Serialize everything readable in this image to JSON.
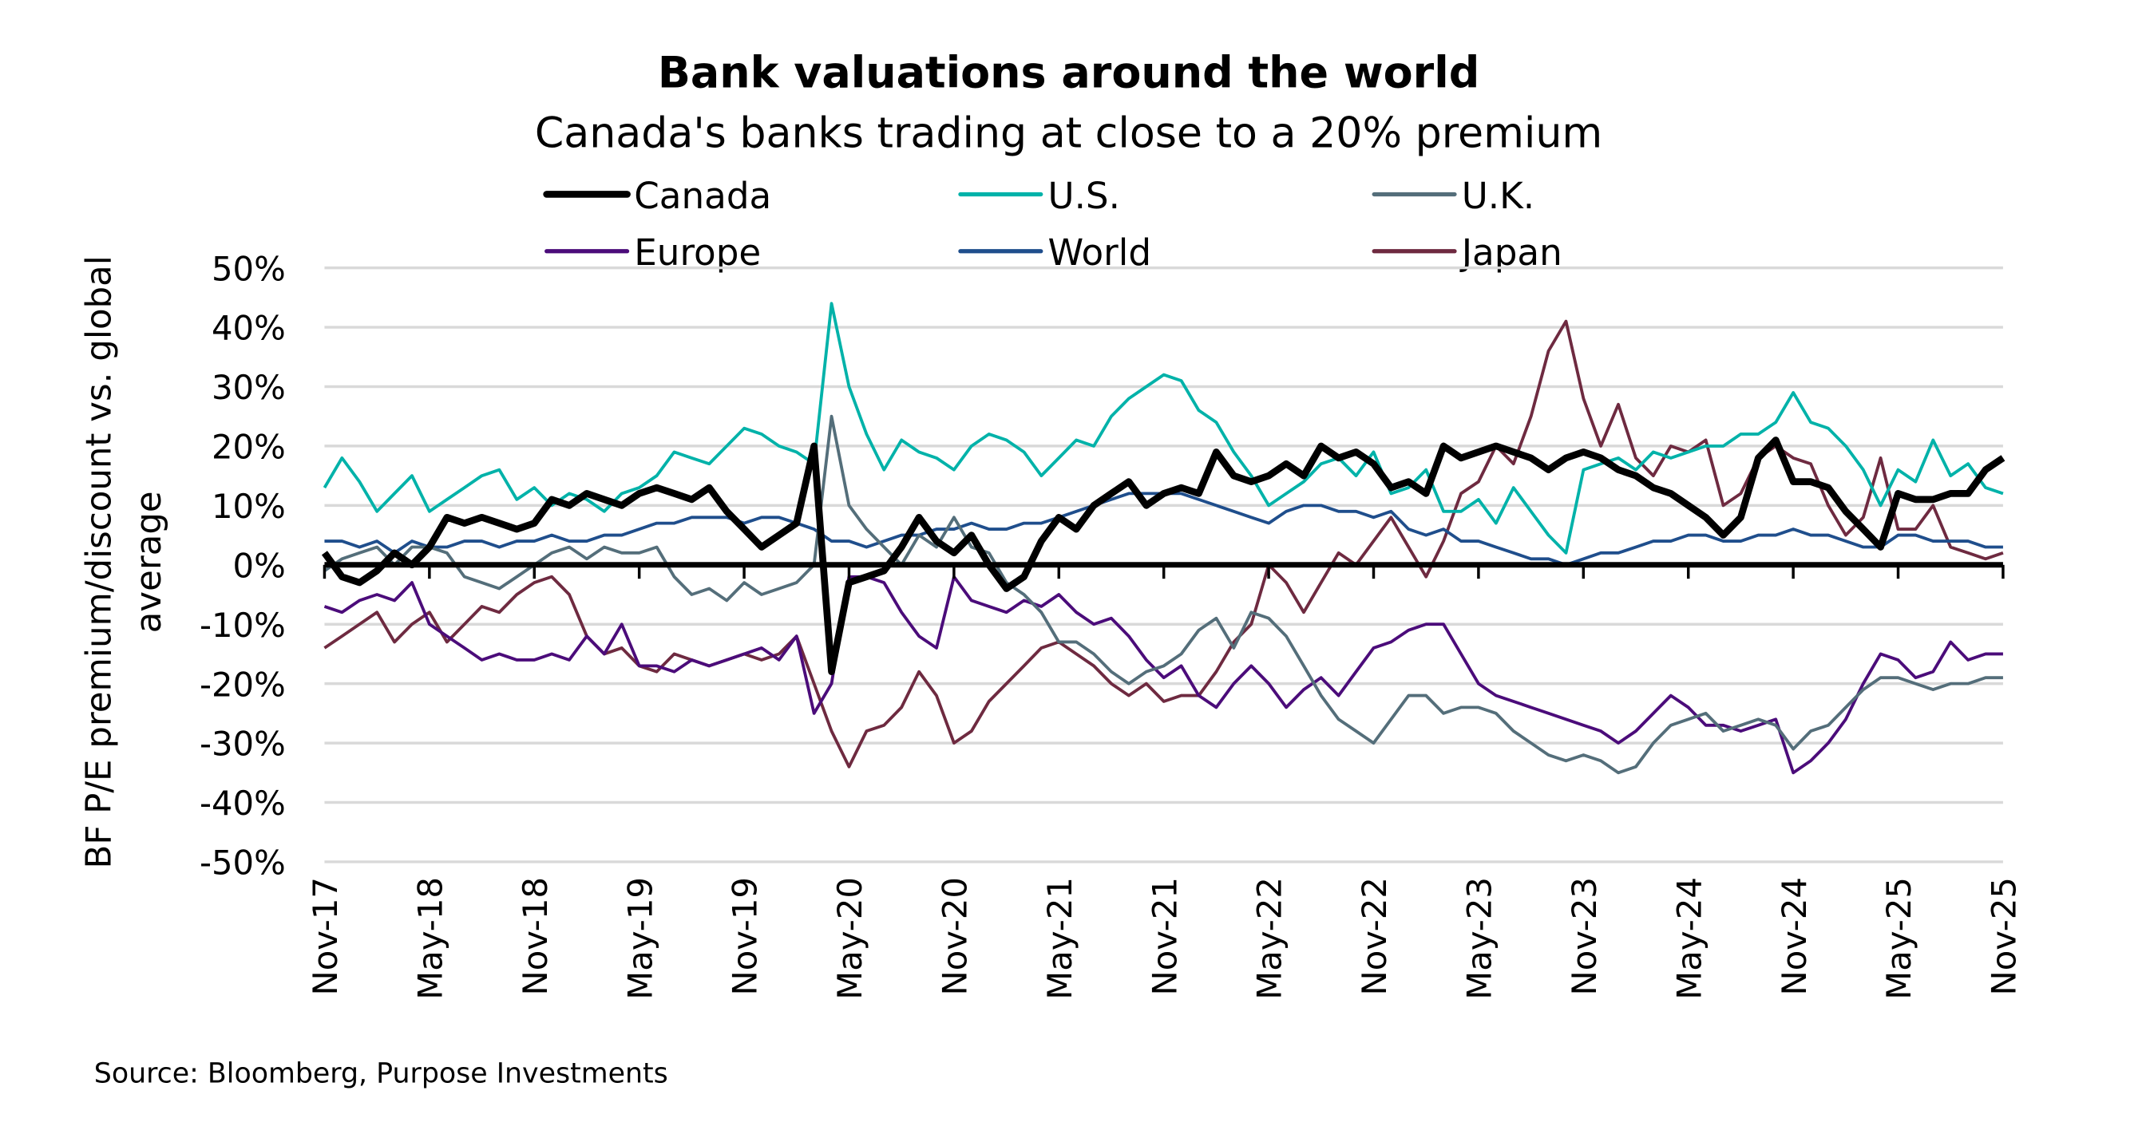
{
  "chart_data": {
    "type": "line",
    "title": "Bank valuations around the world",
    "subtitle": "Canada's banks trading at close to a 20% premium",
    "ylabel_lines": [
      "BF P/E premium/discount vs. global",
      "average"
    ],
    "xlabel": "",
    "source": "Source: Bloomberg, Purpose Investments",
    "ylim": [
      -50,
      50
    ],
    "y_ticks": [
      "50%",
      "40%",
      "30%",
      "20%",
      "10%",
      "0%",
      "-10%",
      "-20%",
      "-30%",
      "-40%",
      "-50%"
    ],
    "y_tick_values": [
      50,
      40,
      30,
      20,
      10,
      0,
      -10,
      -20,
      -30,
      -40,
      -50
    ],
    "x_range": [
      "Nov-17",
      "Nov-25"
    ],
    "x_frequency": "monthly",
    "x_ticks": [
      "Nov-17",
      "May-18",
      "Nov-18",
      "May-19",
      "Nov-19",
      "May-20",
      "Nov-20",
      "May-21",
      "Nov-21",
      "May-22",
      "Nov-22",
      "May-23",
      "Nov-23",
      "May-24",
      "Nov-24",
      "May-25",
      "Nov-25"
    ],
    "grid": true,
    "legend_position": "top",
    "series": [
      {
        "name": "Canada",
        "color": "#000000",
        "values": [
          2,
          -2,
          -3,
          -1,
          2,
          0,
          3,
          8,
          7,
          8,
          7,
          6,
          7,
          11,
          10,
          12,
          11,
          10,
          12,
          13,
          12,
          11,
          13,
          9,
          6,
          3,
          5,
          7,
          20,
          -18,
          -3,
          -2,
          -1,
          3,
          8,
          4,
          2,
          5,
          0,
          -4,
          -2,
          4,
          8,
          6,
          10,
          12,
          14,
          10,
          12,
          13,
          12,
          19,
          15,
          14,
          15,
          17,
          15,
          20,
          18,
          19,
          17,
          13,
          14,
          12,
          20,
          18,
          19,
          20,
          19,
          18,
          16,
          18,
          19,
          18,
          16,
          15,
          13,
          12,
          10,
          8,
          5,
          8,
          18,
          21,
          14,
          14,
          13,
          9,
          6,
          3,
          12,
          11,
          11,
          12,
          12,
          16,
          18
        ]
      },
      {
        "name": "U.S.",
        "color": "#00B2A9",
        "values": [
          13,
          18,
          14,
          9,
          12,
          15,
          9,
          11,
          13,
          15,
          16,
          11,
          13,
          10,
          12,
          11,
          9,
          12,
          13,
          15,
          19,
          18,
          17,
          20,
          23,
          22,
          20,
          19,
          17,
          44,
          30,
          22,
          16,
          21,
          19,
          18,
          16,
          20,
          22,
          21,
          19,
          15,
          18,
          21,
          20,
          25,
          28,
          30,
          32,
          31,
          26,
          24,
          19,
          15,
          10,
          12,
          14,
          17,
          18,
          15,
          19,
          12,
          13,
          16,
          9,
          9,
          11,
          7,
          13,
          9,
          5,
          2,
          16,
          17,
          18,
          16,
          19,
          18,
          19,
          20,
          20,
          22,
          22,
          24,
          29,
          24,
          23,
          20,
          16,
          10,
          16,
          14,
          21,
          15,
          17,
          13,
          12
        ]
      },
      {
        "name": "U.K.",
        "color": "#546E7A",
        "values": [
          -1,
          1,
          2,
          3,
          0,
          3,
          3,
          2,
          -2,
          -3,
          -4,
          -2,
          0,
          2,
          3,
          1,
          3,
          2,
          2,
          3,
          -2,
          -5,
          -4,
          -6,
          -3,
          -5,
          -4,
          -3,
          0,
          25,
          10,
          6,
          3,
          0,
          5,
          3,
          8,
          3,
          2,
          -3,
          -5,
          -8,
          -13,
          -13,
          -15,
          -18,
          -20,
          -18,
          -17,
          -15,
          -11,
          -9,
          -14,
          -8,
          -9,
          -12,
          -17,
          -22,
          -26,
          -28,
          -30,
          -26,
          -22,
          -22,
          -25,
          -24,
          -24,
          -25,
          -28,
          -30,
          -32,
          -33,
          -32,
          -33,
          -35,
          -34,
          -30,
          -27,
          -26,
          -25,
          -28,
          -27,
          -26,
          -27,
          -31,
          -28,
          -27,
          -24,
          -21,
          -19,
          -19,
          -20,
          -21,
          -20,
          -20,
          -19,
          -19
        ]
      },
      {
        "name": "Europe",
        "color": "#4B0C7A",
        "values": [
          -7,
          -8,
          -6,
          -5,
          -6,
          -3,
          -10,
          -12,
          -14,
          -16,
          -15,
          -16,
          -16,
          -15,
          -16,
          -12,
          -15,
          -10,
          -17,
          -17,
          -18,
          -16,
          -17,
          -16,
          -15,
          -14,
          -16,
          -12,
          -25,
          -20,
          -2,
          -2,
          -3,
          -8,
          -12,
          -14,
          -2,
          -6,
          -7,
          -8,
          -6,
          -7,
          -5,
          -8,
          -10,
          -9,
          -12,
          -16,
          -19,
          -17,
          -22,
          -24,
          -20,
          -17,
          -20,
          -24,
          -21,
          -19,
          -22,
          -18,
          -14,
          -13,
          -11,
          -10,
          -10,
          -15,
          -20,
          -22,
          -23,
          -24,
          -25,
          -26,
          -27,
          -28,
          -30,
          -28,
          -25,
          -22,
          -24,
          -27,
          -27,
          -28,
          -27,
          -26,
          -35,
          -33,
          -30,
          -26,
          -20,
          -15,
          -16,
          -19,
          -18,
          -13,
          -16,
          -15,
          -15
        ]
      },
      {
        "name": "World",
        "color": "#1F4E8C",
        "values": [
          4,
          4,
          3,
          4,
          2,
          4,
          3,
          3,
          4,
          4,
          3,
          4,
          4,
          5,
          4,
          4,
          5,
          5,
          6,
          7,
          7,
          8,
          8,
          8,
          7,
          8,
          8,
          7,
          6,
          4,
          4,
          3,
          4,
          5,
          5,
          6,
          6,
          7,
          6,
          6,
          7,
          7,
          8,
          9,
          10,
          11,
          12,
          12,
          12,
          12,
          11,
          10,
          9,
          8,
          7,
          9,
          10,
          10,
          9,
          9,
          8,
          9,
          6,
          5,
          6,
          4,
          4,
          3,
          2,
          1,
          1,
          0,
          1,
          2,
          2,
          3,
          4,
          4,
          5,
          5,
          4,
          4,
          5,
          5,
          6,
          5,
          5,
          4,
          3,
          3,
          5,
          5,
          4,
          4,
          4,
          3,
          3
        ]
      },
      {
        "name": "Japan",
        "color": "#6E2A40",
        "values": [
          -14,
          -12,
          -10,
          -8,
          -13,
          -10,
          -8,
          -13,
          -10,
          -7,
          -8,
          -5,
          -3,
          -2,
          -5,
          -12,
          -15,
          -14,
          -17,
          -18,
          -15,
          -16,
          -17,
          -16,
          -15,
          -16,
          -15,
          -12,
          -20,
          -28,
          -34,
          -28,
          -27,
          -24,
          -18,
          -22,
          -30,
          -28,
          -23,
          -20,
          -17,
          -14,
          -13,
          -15,
          -17,
          -20,
          -22,
          -20,
          -23,
          -22,
          -22,
          -18,
          -13,
          -10,
          0,
          -3,
          -8,
          -3,
          2,
          0,
          4,
          8,
          3,
          -2,
          4,
          12,
          14,
          20,
          17,
          25,
          36,
          41,
          28,
          20,
          27,
          18,
          15,
          20,
          19,
          21,
          10,
          12,
          18,
          20,
          18,
          17,
          10,
          5,
          8,
          18,
          6,
          6,
          10,
          3,
          2,
          1,
          2
        ]
      }
    ]
  }
}
